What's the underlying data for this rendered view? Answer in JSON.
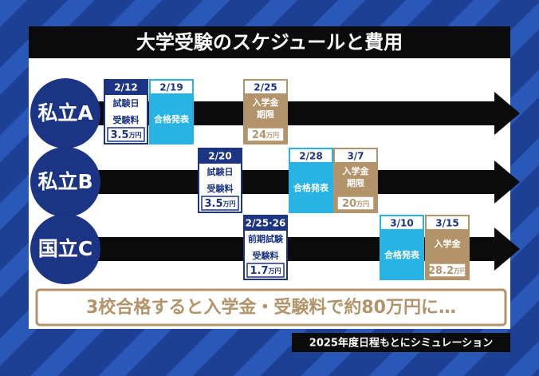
{
  "title": "大学受験のスケジュールと費用",
  "rows": [
    {
      "label": "私立A",
      "events": [
        {
          "date": "2/12",
          "label": [
            "試験日"
          ],
          "fee_label": "受験料",
          "fee": 3.5,
          "unit": "万円",
          "color": "#1b3484"
        },
        {
          "date": "2/19",
          "label": [
            "合格発表"
          ],
          "color": "#27b4e4"
        },
        {
          "date": "2/25",
          "label": [
            "入学金",
            "期限"
          ],
          "fee": 24,
          "unit": "万円",
          "color": "#b3936a"
        }
      ]
    },
    {
      "label": "私立B",
      "events": [
        {
          "date": "2/20",
          "label": [
            "試験日"
          ],
          "fee_label": "受験料",
          "fee": 3.5,
          "unit": "万円",
          "color": "#1b3484"
        },
        {
          "date": "2/28",
          "label": [
            "合格発表"
          ],
          "color": "#27b4e4"
        },
        {
          "date": "3/7",
          "label": [
            "入学金",
            "期限"
          ],
          "fee": 20,
          "unit": "万円",
          "color": "#b3936a"
        }
      ]
    },
    {
      "label": "国立C",
      "events": [
        {
          "date": "2/25·26",
          "label": [
            "前期試験"
          ],
          "fee_label": "受験料",
          "fee": 1.7,
          "unit": "万円",
          "color": "#1b3484"
        },
        {
          "date": "3/10",
          "label": [
            "合格発表"
          ],
          "color": "#27b4e4"
        },
        {
          "date": "3/15",
          "label": [
            "入学金"
          ],
          "fee": 28.2,
          "unit": "万円",
          "color": "#b3936a"
        }
      ]
    }
  ],
  "summary": "3校合格すると入学金・受験料で約80万円に…",
  "caption": "2025年度日程もとにシミュレーション"
}
